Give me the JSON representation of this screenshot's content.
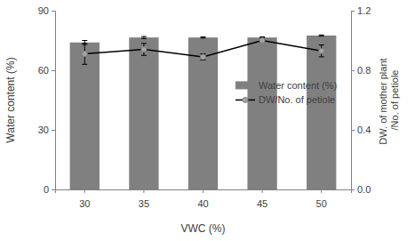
{
  "chart_data": {
    "type": "bar",
    "categories": [
      "30",
      "35",
      "40",
      "45",
      "50"
    ],
    "x_label": "VWC (%)",
    "y_label": "Water content (%)",
    "y2_label": "DW. of mother plant /No. of petiole",
    "ylim": [
      0,
      90
    ],
    "yticks": [
      0,
      30,
      60,
      90
    ],
    "y2lim": [
      0,
      1.2
    ],
    "y2ticks": [
      {
        "value": 0,
        "label": "0.0"
      },
      0.4,
      0.8,
      1.2
    ],
    "legend": "right",
    "series": [
      {
        "name": "Water content (%)",
        "type": "bar",
        "color": "#808080",
        "values": [
          74.0,
          76.5,
          76.5,
          76.5,
          77.5
        ],
        "errors": [
          1.0,
          0.5,
          0.3,
          0.3,
          0.3
        ]
      },
      {
        "name": "DW/No. of petiole",
        "type": "line",
        "axis": "y2",
        "color": "#000000",
        "marker": "circle",
        "values": [
          0.91,
          0.94,
          0.89,
          1.0,
          0.93
        ],
        "errors": [
          0.07,
          0.04,
          0.02,
          0.01,
          0.04
        ]
      }
    ]
  }
}
